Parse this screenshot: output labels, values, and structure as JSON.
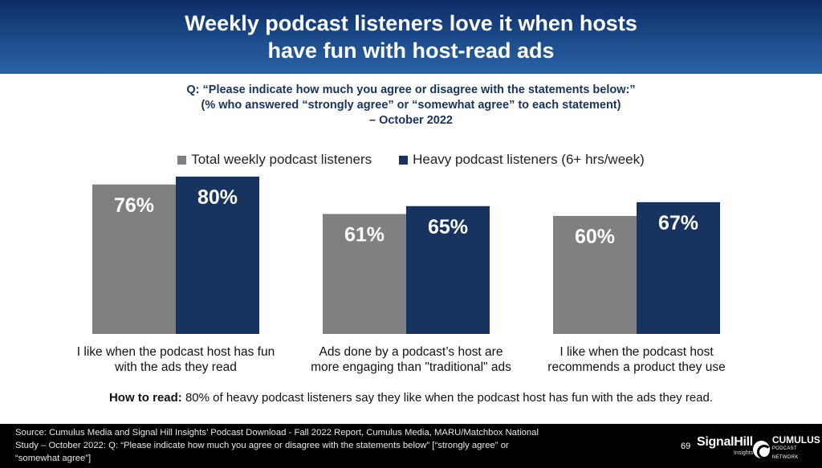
{
  "header": {
    "title_line1": "Weekly podcast listeners love it when hosts",
    "title_line2": "have fun with host-read ads"
  },
  "question": {
    "line1": "Q: “Please indicate how much you agree or disagree with the statements below:”",
    "line2": "(% who answered “strongly agree” or “somewhat agree” to each statement)",
    "line3": "– October 2022"
  },
  "colors": {
    "total": "#808080",
    "heavy": "#17335f"
  },
  "chart_data": {
    "type": "bar",
    "categories": [
      "I like when the podcast host has fun with the ads they read",
      "Ads done by a podcast’s host are more engaging than \"traditional\" ads",
      "I like when the podcast host recommends a product they use"
    ],
    "category_lines": [
      [
        "I like when the podcast host has fun",
        "with the ads they read"
      ],
      [
        "Ads done by a podcast’s host are",
        "more engaging than \"traditional\" ads"
      ],
      [
        "I like when the podcast host",
        "recommends a product they use"
      ]
    ],
    "series": [
      {
        "name": "Total weekly podcast listeners",
        "values": [
          76,
          61,
          60
        ],
        "labels": [
          "76%",
          "61%",
          "60%"
        ]
      },
      {
        "name": "Heavy podcast listeners (6+ hrs/week)",
        "values": [
          80,
          65,
          67
        ],
        "labels": [
          "80%",
          "65%",
          "67%"
        ]
      }
    ],
    "unit": "%",
    "legend_position": "top-center",
    "grid": false
  },
  "how_to_read": {
    "label": "How to read:",
    "text": " 80% of heavy podcast listeners say they like when the podcast host has fun with the ads they read."
  },
  "footer": {
    "source_line1": "Source: Cumulus Media and Signal Hill Insights’ Podcast Download - Fall 2022 Report, Cumulus Media, MARU/Matchbox National",
    "source_line2": "Study – October 2022: Q: “Please indicate how much you agree or disagree with the statements below” [“strongly agree” or",
    "source_line3": "“somewhat agree”]",
    "page_number": "69",
    "logo_signalhill": "SignalHill",
    "logo_signalhill_sub": "Insights",
    "logo_cumulus": "CUMULUS",
    "logo_cumulus_sub": "PODCAST NETWORK"
  }
}
